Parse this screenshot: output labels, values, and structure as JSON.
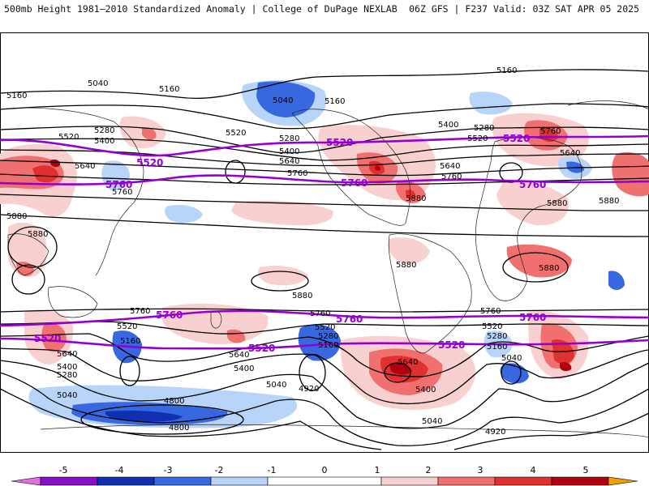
{
  "header": {
    "left_title": "500mb Height 1981–2010 Standardized Anomaly | College of DuPage NEXLAB",
    "right_title": "06Z GFS | F237 Valid: 03Z SAT APR 05 2025"
  },
  "colorbar": {
    "ticks": [
      "-5",
      "-4",
      "-3",
      "-2",
      "-1",
      "0",
      "1",
      "2",
      "3",
      "4",
      "5"
    ],
    "colors": {
      "m5": "#e070e0",
      "m4": "#8a10c8",
      "m3": "#1030b0",
      "m2": "#3868e0",
      "m1": "#b8d4f8",
      "zero": "#ffffff",
      "p1": "#f8d0d0",
      "p2": "#f07070",
      "p3": "#e03030",
      "p4": "#b00010",
      "p5": "#f0a000"
    }
  },
  "contour_labels": [
    {
      "text": "5040",
      "kind": "black"
    },
    {
      "text": "5160",
      "kind": "black"
    },
    {
      "text": "5160",
      "kind": "black"
    },
    {
      "text": "5280",
      "kind": "black"
    },
    {
      "text": "5400",
      "kind": "black"
    },
    {
      "text": "5520",
      "kind": "black"
    },
    {
      "text": "5520",
      "kind": "black"
    },
    {
      "text": "5640",
      "kind": "black"
    },
    {
      "text": "5760",
      "kind": "black"
    },
    {
      "text": "5880",
      "kind": "black"
    },
    {
      "text": "5880",
      "kind": "black"
    },
    {
      "text": "5040",
      "kind": "black"
    },
    {
      "text": "5160",
      "kind": "black"
    },
    {
      "text": "5280",
      "kind": "black"
    },
    {
      "text": "5400",
      "kind": "black"
    },
    {
      "text": "5640",
      "kind": "black"
    },
    {
      "text": "5760",
      "kind": "black"
    },
    {
      "text": "5880",
      "kind": "black"
    },
    {
      "text": "5400",
      "kind": "black"
    },
    {
      "text": "5280",
      "kind": "black"
    },
    {
      "text": "5520",
      "kind": "black"
    },
    {
      "text": "5640",
      "kind": "black"
    },
    {
      "text": "5760",
      "kind": "black"
    },
    {
      "text": "5880",
      "kind": "black"
    },
    {
      "text": "5160",
      "kind": "black"
    },
    {
      "text": "5760",
      "kind": "black"
    },
    {
      "text": "5640",
      "kind": "black"
    },
    {
      "text": "5880",
      "kind": "black"
    },
    {
      "text": "5880",
      "kind": "black"
    },
    {
      "text": "5880",
      "kind": "black"
    },
    {
      "text": "5880",
      "kind": "black"
    },
    {
      "text": "5760",
      "kind": "black"
    },
    {
      "text": "5520",
      "kind": "black"
    },
    {
      "text": "5160",
      "kind": "black"
    },
    {
      "text": "5640",
      "kind": "black"
    },
    {
      "text": "5400",
      "kind": "black"
    },
    {
      "text": "5280",
      "kind": "black"
    },
    {
      "text": "5040",
      "kind": "black"
    },
    {
      "text": "4800",
      "kind": "black"
    },
    {
      "text": "4800",
      "kind": "black"
    },
    {
      "text": "5640",
      "kind": "black"
    },
    {
      "text": "5400",
      "kind": "black"
    },
    {
      "text": "5040",
      "kind": "black"
    },
    {
      "text": "5760",
      "kind": "black"
    },
    {
      "text": "5520",
      "kind": "black"
    },
    {
      "text": "5280",
      "kind": "black"
    },
    {
      "text": "5160",
      "kind": "black"
    },
    {
      "text": "4920",
      "kind": "black"
    },
    {
      "text": "5640",
      "kind": "black"
    },
    {
      "text": "5400",
      "kind": "black"
    },
    {
      "text": "5040",
      "kind": "black"
    },
    {
      "text": "4920",
      "kind": "black"
    },
    {
      "text": "5760",
      "kind": "black"
    },
    {
      "text": "5520",
      "kind": "black"
    },
    {
      "text": "5280",
      "kind": "black"
    },
    {
      "text": "5160",
      "kind": "black"
    },
    {
      "text": "5040",
      "kind": "black"
    },
    {
      "text": "5520",
      "kind": "purple"
    },
    {
      "text": "5520",
      "kind": "purple"
    },
    {
      "text": "5520",
      "kind": "purple"
    },
    {
      "text": "5760",
      "kind": "purple"
    },
    {
      "text": "5760",
      "kind": "purple"
    },
    {
      "text": "5760",
      "kind": "purple"
    },
    {
      "text": "5760",
      "kind": "purple"
    },
    {
      "text": "5760",
      "kind": "purple"
    },
    {
      "text": "5760",
      "kind": "purple"
    },
    {
      "text": "5520",
      "kind": "purple"
    },
    {
      "text": "5520",
      "kind": "purple"
    },
    {
      "text": "5520",
      "kind": "purple"
    }
  ]
}
